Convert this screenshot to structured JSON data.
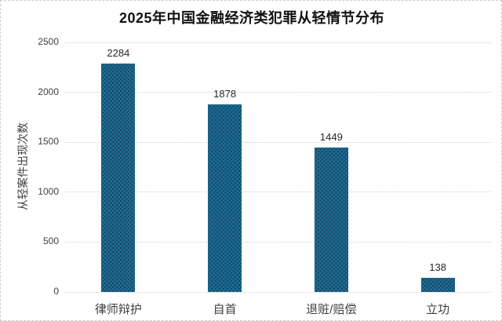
{
  "page": {
    "background_color": "#ffffff",
    "border_color": "#cccccc"
  },
  "chart_data": {
    "type": "bar",
    "title": "2025年中国金融经济类犯罪从轻情节分布",
    "categories": [
      "律师辩护",
      "自首",
      "退赃/赔偿",
      "立功"
    ],
    "values": [
      2284,
      1878,
      1449,
      138
    ],
    "value_labels": [
      "2284",
      "1878",
      "1449",
      "138"
    ],
    "xlabel": "",
    "ylabel": "从轻案件出现次数",
    "ylim": [
      0,
      2500
    ],
    "yticks": [
      0,
      500,
      1000,
      1500,
      2000,
      2500
    ],
    "grid": "horizontal-dotted",
    "legend_position": "none",
    "bar_color": "#1e6b93",
    "bar_pattern_color": "#123f5a",
    "gridline_color": "#cfcfcf",
    "tick_text_color": "#404040",
    "value_text_color": "#262626",
    "title_color": "#111111"
  }
}
